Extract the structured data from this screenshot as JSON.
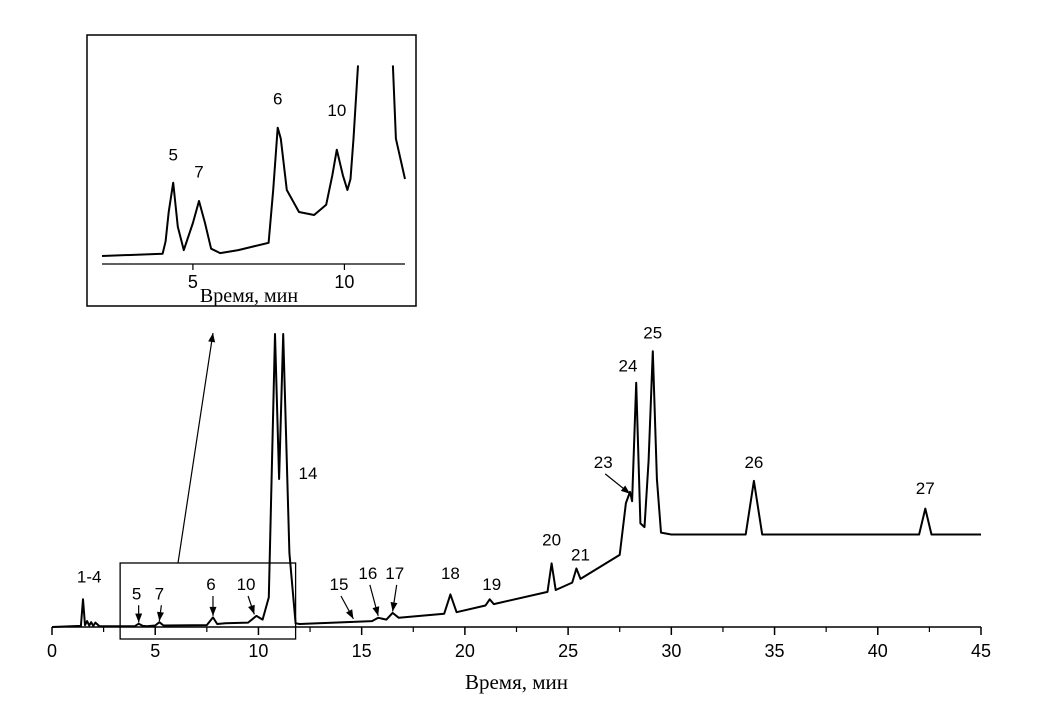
{
  "chart_data": [
    {
      "type": "line",
      "xlabel": "Время, мин",
      "ylabel": "",
      "xlim": [
        0,
        45
      ],
      "xticks": [
        0,
        5,
        10,
        15,
        20,
        25,
        30,
        35,
        40,
        45
      ],
      "grid": false,
      "series": [
        {
          "x": [
            0,
            1.4,
            1.5,
            1.6,
            1.7,
            1.8,
            1.9,
            2.0,
            2.1,
            2.3,
            4.0,
            4.2,
            4.4,
            4.6,
            5.0,
            5.2,
            5.4,
            7.5,
            7.8,
            8.0,
            8.4,
            9.5,
            9.9,
            10.2,
            10.5,
            10.8,
            11.0,
            11.2,
            11.5,
            11.8,
            12.0,
            15.5,
            15.8,
            16.2,
            16.5,
            16.8,
            19.0,
            19.3,
            19.6,
            21.0,
            21.2,
            21.4,
            24.0,
            24.2,
            24.4,
            25.2,
            25.4,
            25.6,
            27.5,
            27.8,
            28.0,
            28.1,
            28.3,
            28.5,
            28.7,
            28.9,
            29.1,
            29.3,
            29.5,
            30.0,
            33.6,
            34.0,
            34.4,
            42.0,
            42.3,
            42.6,
            45.0
          ],
          "y": [
            0,
            0.3,
            7.5,
            0.5,
            1.6,
            0.4,
            1.3,
            0.3,
            1.2,
            0.2,
            0.2,
            0.9,
            0.3,
            0.2,
            0.4,
            1.3,
            0.4,
            0.5,
            2.6,
            0.8,
            1.0,
            1.2,
            3.0,
            2.0,
            8.0,
            120,
            40,
            120,
            20,
            1.0,
            0.8,
            1.6,
            2.5,
            2.0,
            3.8,
            2.5,
            3.6,
            8.8,
            4.0,
            5.8,
            7.5,
            6.2,
            9.5,
            17.2,
            10.0,
            12.0,
            15.8,
            13.0,
            19.5,
            33.5,
            36.5,
            34.0,
            66.0,
            28.0,
            27.0,
            45.0,
            74.5,
            40.0,
            25.5,
            25.0,
            25.0,
            39.5,
            25.0,
            25.0,
            32.0,
            25.0,
            25.0
          ]
        }
      ],
      "labels": [
        {
          "text": "1-4",
          "x": 1.8,
          "y": 12
        },
        {
          "text": "5",
          "x": 4.1,
          "y": 7.5,
          "arrow_to": {
            "x": 4.2,
            "y": 1.2
          }
        },
        {
          "text": "7",
          "x": 5.2,
          "y": 7.5,
          "arrow_to": {
            "x": 5.2,
            "y": 1.6
          }
        },
        {
          "text": "6",
          "x": 7.7,
          "y": 10,
          "arrow_to": {
            "x": 7.8,
            "y": 3.0
          }
        },
        {
          "text": "10",
          "x": 9.4,
          "y": 10,
          "arrow_to": {
            "x": 9.8,
            "y": 3.4
          }
        },
        {
          "text": "14",
          "x": 12.4,
          "y": 40
        },
        {
          "text": "15",
          "x": 13.9,
          "y": 10,
          "arrow_to": {
            "x": 14.6,
            "y": 2.2
          }
        },
        {
          "text": "16",
          "x": 15.3,
          "y": 13,
          "arrow_to": {
            "x": 15.8,
            "y": 3.0
          }
        },
        {
          "text": "17",
          "x": 16.6,
          "y": 13,
          "arrow_to": {
            "x": 16.5,
            "y": 4.2
          }
        },
        {
          "text": "18",
          "x": 19.3,
          "y": 13
        },
        {
          "text": "19",
          "x": 21.3,
          "y": 10
        },
        {
          "text": "20",
          "x": 24.2,
          "y": 22
        },
        {
          "text": "21",
          "x": 25.6,
          "y": 18
        },
        {
          "text": "23",
          "x": 26.7,
          "y": 43,
          "arrow_to": {
            "x": 28.0,
            "y": 36.0
          }
        },
        {
          "text": "24",
          "x": 27.9,
          "y": 69
        },
        {
          "text": "25",
          "x": 29.1,
          "y": 78
        },
        {
          "text": "26",
          "x": 34.0,
          "y": 43
        },
        {
          "text": "27",
          "x": 42.3,
          "y": 36
        }
      ]
    },
    {
      "type": "line",
      "xlabel": "Время, мин",
      "ylabel": "",
      "xticks": [
        5,
        10
      ],
      "grid": false,
      "series": [
        {
          "x": [
            2.0,
            4.0,
            4.1,
            4.2,
            4.35,
            4.5,
            4.7,
            5.0,
            5.2,
            5.4,
            5.6,
            5.9,
            6.5,
            7.5,
            7.65,
            7.8,
            7.9,
            8.1,
            8.5,
            9.0,
            9.4,
            9.6,
            9.75,
            9.95,
            10.1,
            10.2,
            10.3,
            10.45,
            11.6,
            11.7,
            12.0
          ],
          "y": [
            0,
            0.3,
            2.0,
            6.0,
            10.0,
            4.0,
            0.8,
            4.5,
            7.5,
            4.5,
            1.0,
            0.4,
            0.8,
            1.8,
            9.0,
            17.5,
            16.0,
            9.0,
            6.0,
            5.6,
            7.0,
            11.0,
            14.5,
            11.0,
            9.0,
            10.5,
            16.0,
            26.0,
            26.0,
            16.0,
            10.5
          ]
        }
      ],
      "labels": [
        {
          "text": "5",
          "x": 4.35,
          "y": 13.0
        },
        {
          "text": "7",
          "x": 5.2,
          "y": 10.7
        },
        {
          "text": "6",
          "x": 7.8,
          "y": 20.7
        },
        {
          "text": "10",
          "x": 9.75,
          "y": 19.1
        }
      ]
    }
  ]
}
